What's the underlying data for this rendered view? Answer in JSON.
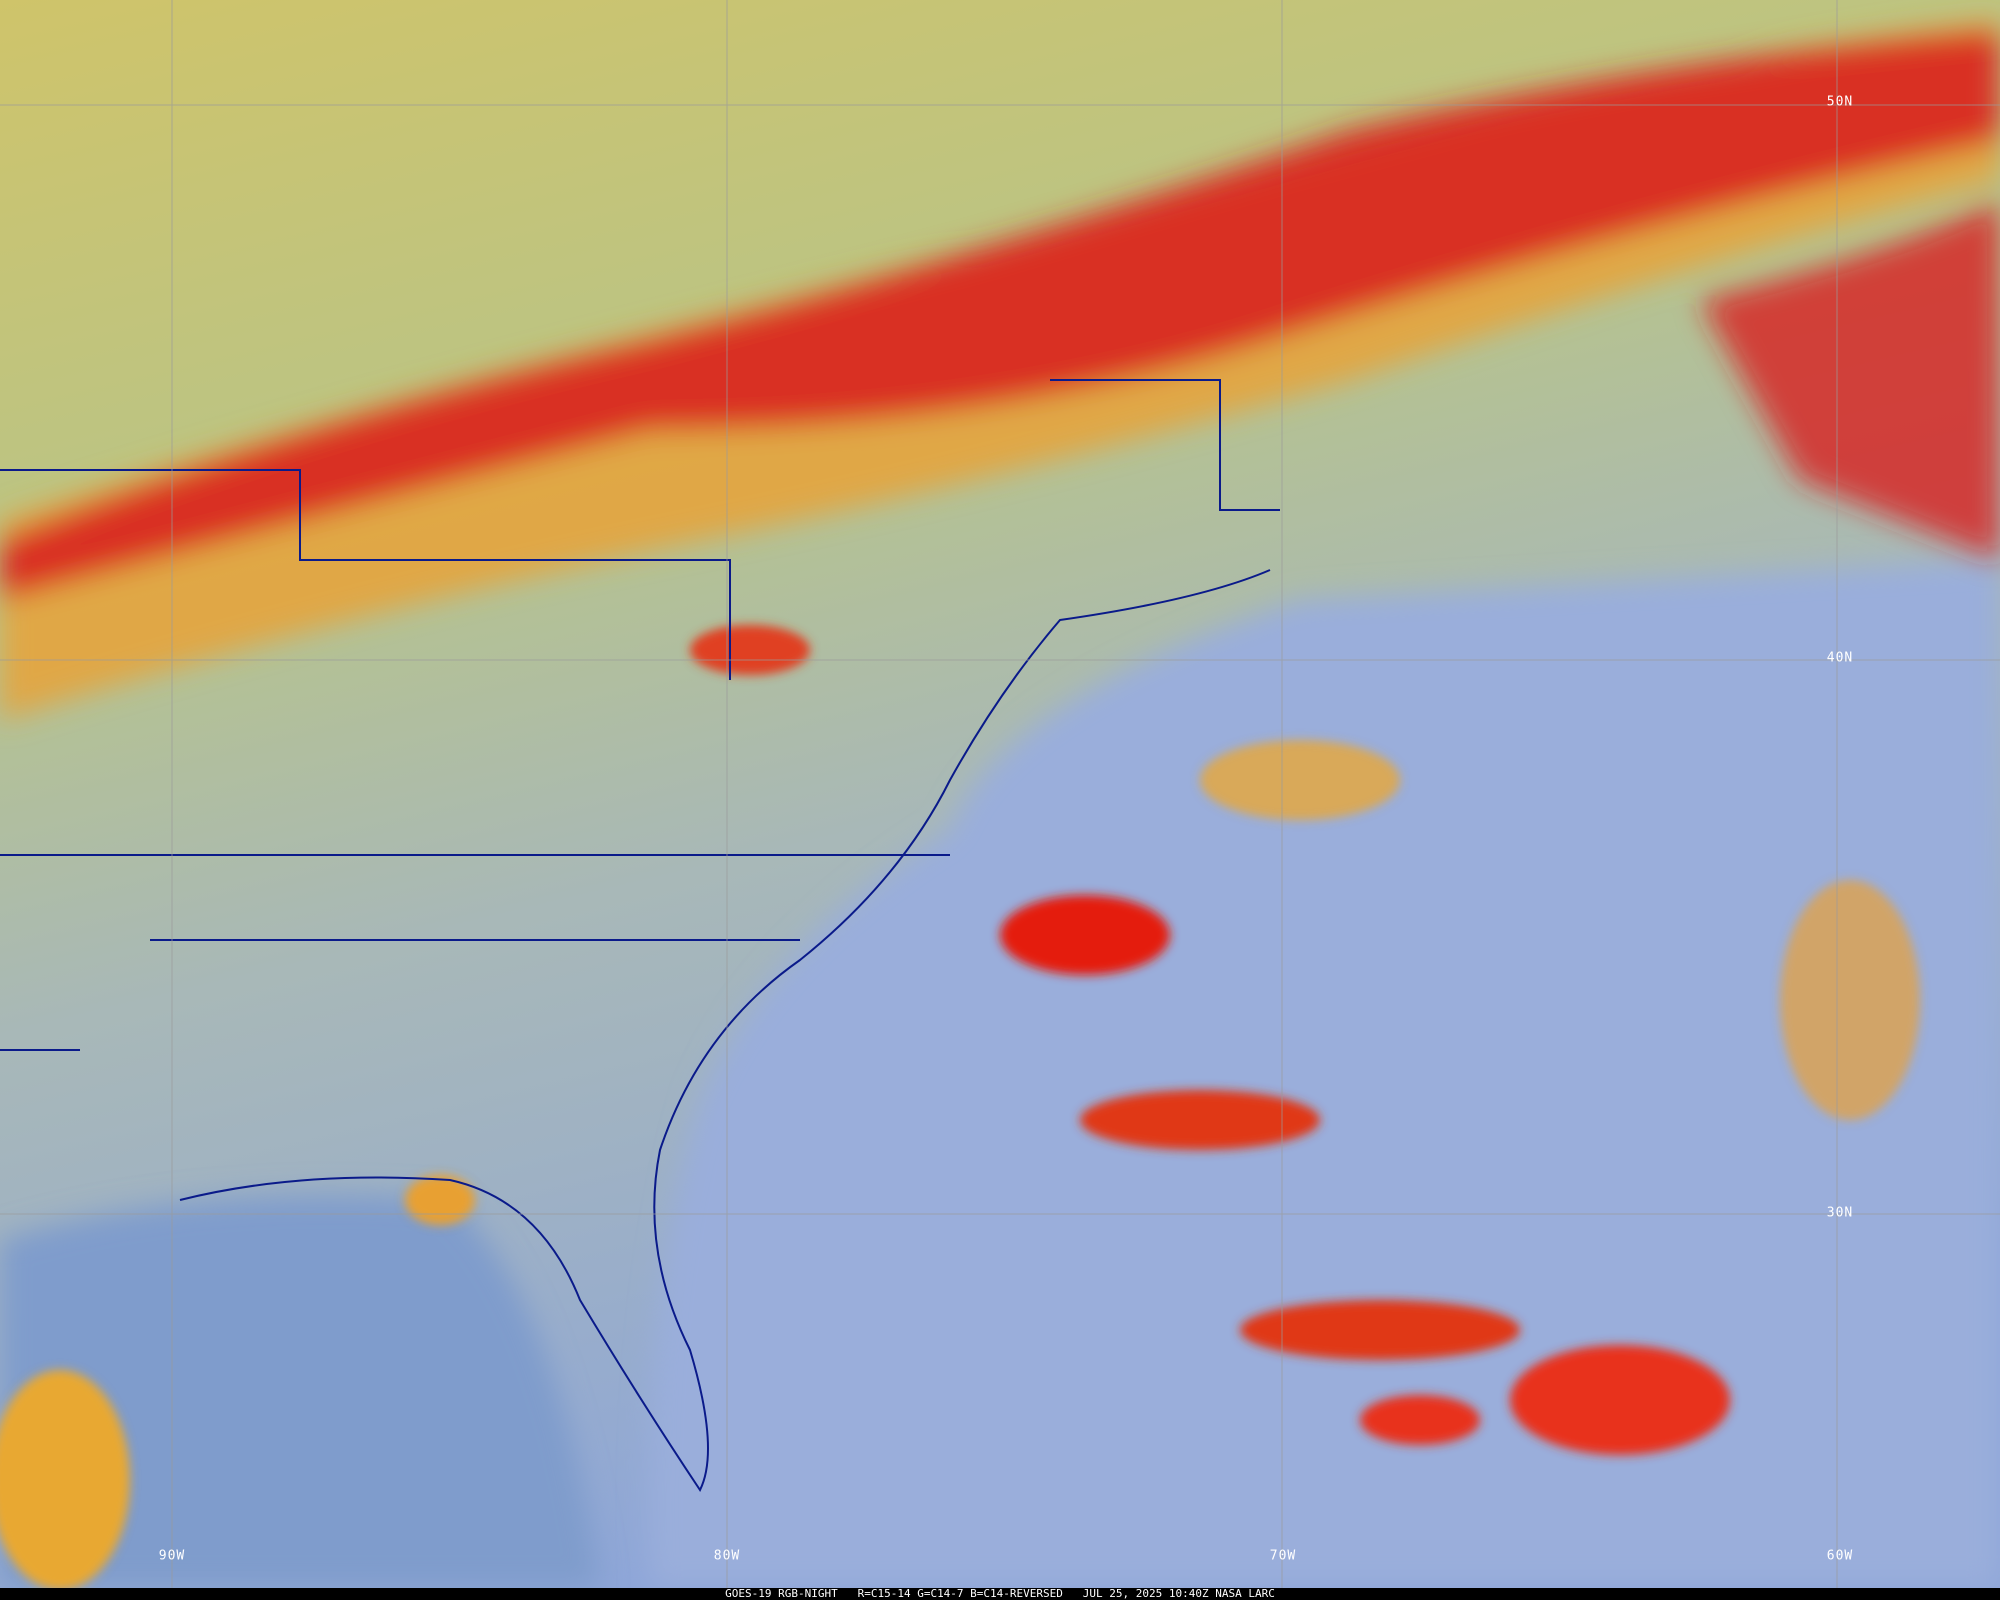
{
  "caption": {
    "satellite": "GOES-19 RGB-NIGHT",
    "channels": "R=C15-14 G=C14-7 B=C14-REVERSED",
    "datetime": "JUL 25, 2025 10:40Z",
    "source": "NASA LARC"
  },
  "grid": {
    "latitude_labels": [
      "50N",
      "40N",
      "30N"
    ],
    "longitude_labels": [
      "90W",
      "80W",
      "70W",
      "60W"
    ]
  },
  "colors": {
    "land_clear": "#b9c48a",
    "ocean_clear": "#93a9d6",
    "high_cloud": "#e01c1c",
    "mid_cloud": "#e8a838",
    "low_cloud_north": "#c8c86a",
    "boundaries": "#0a1a8a",
    "gridlines": "#9a9a9a"
  }
}
